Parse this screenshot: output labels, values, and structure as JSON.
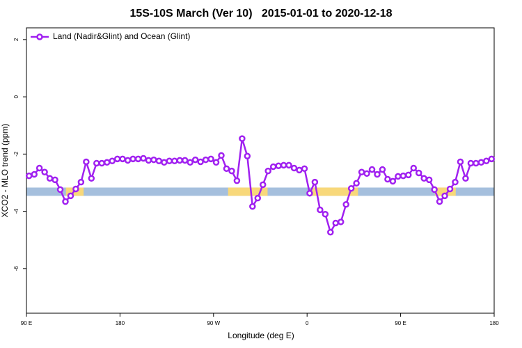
{
  "chart_data": {
    "type": "line",
    "title": "15S-10S March (Ver 10)   2015-01-01 to 2020-12-18",
    "x_label": "Longitude (deg E)",
    "y_label": "XCO2 - MLO trend (ppm)",
    "xlim": [
      90,
      540
    ],
    "ylim": [
      -7.56,
      2.41
    ],
    "xticks": [
      {
        "value": 90,
        "label": "90 E"
      },
      180,
      {
        "value": 270,
        "label": "90 W"
      },
      {
        "value": 360,
        "label": "0"
      },
      {
        "value": 450,
        "label": "90 E"
      },
      {
        "value": 540,
        "label": "180"
      }
    ],
    "yticks": [
      2,
      0,
      -2,
      -4,
      -6
    ],
    "legend": "top-left",
    "x": [
      92.5,
      97.5,
      102.5,
      107.5,
      112.5,
      117.5,
      122.5,
      127.5,
      132.5,
      137.5,
      142.5,
      147.5,
      152.5,
      157.5,
      162.5,
      167.5,
      172.5,
      177.5,
      182.5,
      187.5,
      192.5,
      197.5,
      202.5,
      207.5,
      212.5,
      217.5,
      222.5,
      227.5,
      232.5,
      237.5,
      242.5,
      247.5,
      252.5,
      257.5,
      262.5,
      267.5,
      272.5,
      277.5,
      282.5,
      287.5,
      292.5,
      297.5,
      302.5,
      307.5,
      312.5,
      317.5,
      322.5,
      327.5,
      332.5,
      337.5,
      342.5,
      347.5,
      352.5,
      357.5,
      362.5,
      367.5,
      372.5,
      377.5,
      382.5,
      387.5,
      392.5,
      397.5,
      402.5,
      407.5,
      412.5,
      417.5,
      422.5,
      427.5,
      432.5,
      437.5,
      442.5,
      447.5,
      452.5,
      457.5,
      462.5,
      467.5,
      472.5,
      477.5,
      482.5,
      487.5,
      492.5,
      497.5,
      502.5,
      507.5,
      512.5,
      517.5,
      522.5,
      527.5,
      532.5,
      537.5
    ],
    "series": [
      {
        "name": "Land (Nadir&Glint) and Ocean (Glint)",
        "color": "#a020f0",
        "values": [
          -2.76,
          -2.71,
          -2.49,
          -2.63,
          -2.85,
          -2.9,
          -3.24,
          -3.66,
          -3.46,
          -3.22,
          -2.98,
          -2.27,
          -2.85,
          -2.32,
          -2.32,
          -2.29,
          -2.24,
          -2.17,
          -2.17,
          -2.22,
          -2.17,
          -2.17,
          -2.15,
          -2.22,
          -2.2,
          -2.24,
          -2.29,
          -2.24,
          -2.24,
          -2.22,
          -2.22,
          -2.29,
          -2.2,
          -2.27,
          -2.2,
          -2.17,
          -2.29,
          -2.05,
          -2.51,
          -2.59,
          -2.93,
          -1.46,
          -2.07,
          -3.83,
          -3.54,
          -3.07,
          -2.59,
          -2.44,
          -2.41,
          -2.39,
          -2.39,
          -2.49,
          -2.56,
          -2.51,
          -3.37,
          -2.98,
          -3.95,
          -4.1,
          -4.73,
          -4.41,
          -4.37,
          -3.76,
          -3.2,
          -3.02,
          -2.63,
          -2.68,
          -2.54,
          -2.71,
          -2.54,
          -2.88,
          -2.95,
          -2.78,
          -2.76,
          -2.73,
          -2.49,
          -2.66,
          -2.85,
          -2.9,
          -3.24,
          -3.66,
          -3.46,
          -3.22,
          -2.98,
          -2.27,
          -2.85,
          -2.32,
          -2.32,
          -2.29,
          -2.24,
          -2.17
        ]
      }
    ],
    "band": {
      "ylim": [
        -3.17,
        -3.46
      ],
      "ocean_color": "#a5bfdd",
      "land_color": "#f8d87a",
      "land_spans": [
        [
          128,
          145
        ],
        [
          284,
          322
        ],
        [
          365,
          409
        ],
        [
          483,
          503
        ]
      ]
    }
  }
}
